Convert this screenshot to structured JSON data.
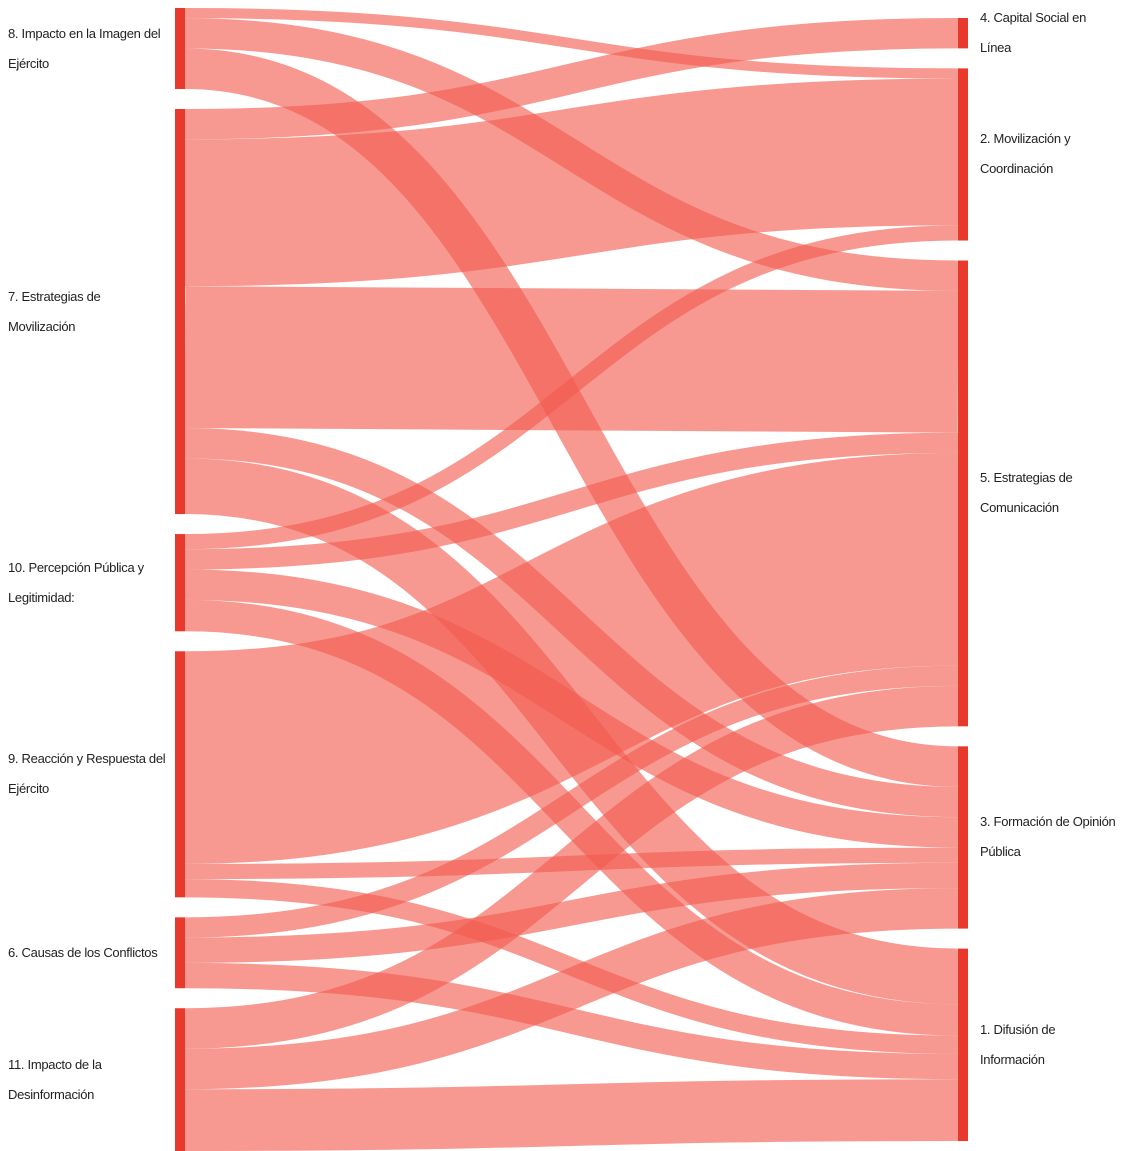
{
  "chart_data": {
    "type": "sankey",
    "node_color": "#e8392d",
    "link_color": "rgba(242,90,78,0.62)",
    "sources": [
      "8. Impacto en la Imagen del Ejército",
      "7. Estrategias de Movilización",
      "10. Percepción Pública y Legitimidad:",
      "9. Reacción y Respuesta del Ejército",
      "6. Causas de los Conflictos",
      "11. Impacto de la Desinformación"
    ],
    "targets": [
      "4. Capital Social en Línea",
      "2. Movilización y Coordinación",
      "5. Estrategias de Comunicación",
      "3. Formación de Opinión Pública",
      "1. Difusión de Información"
    ],
    "links": [
      {
        "source": 0,
        "target": 1,
        "value": 10
      },
      {
        "source": 0,
        "target": 2,
        "value": 30
      },
      {
        "source": 0,
        "target": 3,
        "value": 40
      },
      {
        "source": 1,
        "target": 0,
        "value": 30
      },
      {
        "source": 1,
        "target": 1,
        "value": 145
      },
      {
        "source": 1,
        "target": 2,
        "value": 140
      },
      {
        "source": 1,
        "target": 3,
        "value": 30
      },
      {
        "source": 1,
        "target": 4,
        "value": 55
      },
      {
        "source": 2,
        "target": 1,
        "value": 15
      },
      {
        "source": 2,
        "target": 2,
        "value": 20
      },
      {
        "source": 2,
        "target": 3,
        "value": 30
      },
      {
        "source": 2,
        "target": 4,
        "value": 31
      },
      {
        "source": 3,
        "target": 2,
        "value": 210
      },
      {
        "source": 3,
        "target": 3,
        "value": 15
      },
      {
        "source": 3,
        "target": 4,
        "value": 18
      },
      {
        "source": 4,
        "target": 2,
        "value": 20
      },
      {
        "source": 4,
        "target": 3,
        "value": 25
      },
      {
        "source": 4,
        "target": 4,
        "value": 25
      },
      {
        "source": 5,
        "target": 2,
        "value": 40
      },
      {
        "source": 5,
        "target": 3,
        "value": 40
      },
      {
        "source": 5,
        "target": 4,
        "value": 61
      }
    ]
  }
}
